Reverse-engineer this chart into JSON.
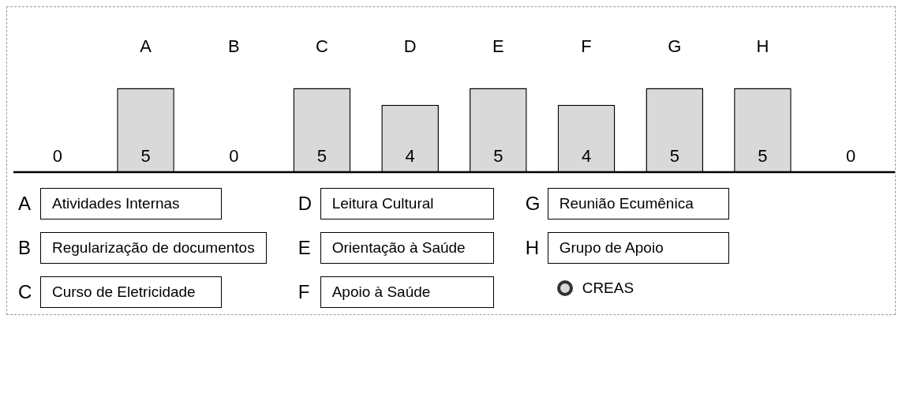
{
  "chart_data": {
    "type": "bar",
    "categories": [
      null,
      "A",
      "B",
      "C",
      "D",
      "E",
      "F",
      "G",
      "H",
      null
    ],
    "series": [
      {
        "name": "CREAS",
        "color": "#d9d9d9",
        "values": [
          0,
          5,
          0,
          5,
          4,
          5,
          4,
          5,
          5,
          0
        ]
      }
    ],
    "data_labels": true,
    "legend": "bottom right",
    "grid": false,
    "annotations": [
      "Atividades Internas",
      "Regularização de documentos",
      "Curso de Eletricidade",
      "Leitura Cultural",
      "Orientação à Saúde",
      "Apoio à Saúde",
      "Reunião Ecumênica",
      "Grupo de Apoio"
    ]
  }
}
